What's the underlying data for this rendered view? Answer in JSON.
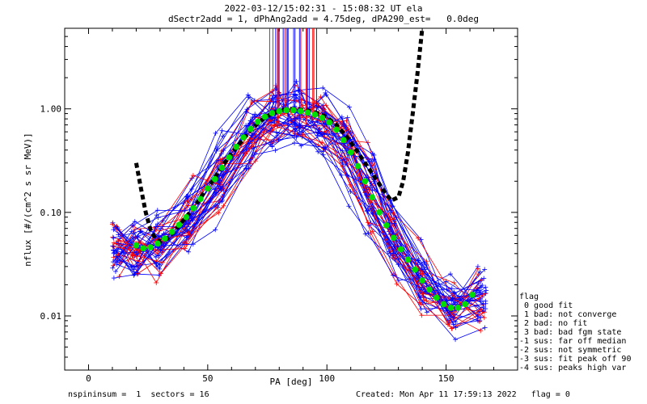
{
  "header": {
    "line1": "2022-03-12/15:02:31 - 15:08:32 UT ela",
    "line2": "dSectr2add = 1, dPhAng2add = 4.75deg, dPA290_est=   0.0deg"
  },
  "legend": {
    "title": "flag",
    "items": [
      " 0 good fit",
      " 1 bad: not converge",
      " 2 bad: no fit",
      " 3 bad: bad fgm state",
      "-1 sus: far off median",
      "-2 sus: not symmetric",
      "-3 sus: fit peak off 90",
      "-4 sus: peaks high var"
    ]
  },
  "footer": {
    "left": "nspininsum =  1  sectors = 16",
    "right": "Created: Mon Apr 11 17:59:13 2022   flag = 0"
  },
  "chart_data": {
    "type": "line",
    "xlabel": "PA [deg]",
    "ylabel": "nflux [#/(cm^2 s sr MeV)]",
    "xlim": [
      -10,
      180
    ],
    "ylim_log": [
      0.003,
      6.0
    ],
    "x_ticks": [
      0,
      50,
      100,
      150
    ],
    "x_tick_labels": [
      "0",
      "50",
      "100",
      "150"
    ],
    "y_ticks": [
      0.01,
      0.1,
      1.0
    ],
    "y_tick_labels": [
      "0.01",
      "0.10",
      "1.00"
    ],
    "colors": {
      "blue": "#0000ff",
      "red": "#ff0000",
      "green": "#00dd00",
      "black": "#000000"
    },
    "series": [
      {
        "color": "green",
        "style": "dots",
        "x": [
          20,
          23,
          26,
          29,
          32,
          35,
          38,
          41,
          44,
          47,
          50,
          53,
          56,
          59,
          62,
          65,
          68,
          71,
          74,
          77,
          80,
          83,
          86,
          89,
          92,
          95,
          98,
          101,
          104,
          107,
          110,
          113,
          116,
          119,
          122,
          125,
          128,
          131,
          134,
          137,
          140,
          143,
          146,
          149,
          152,
          155,
          158,
          161
        ],
        "y": [
          0.048,
          0.045,
          0.046,
          0.05,
          0.056,
          0.065,
          0.076,
          0.09,
          0.11,
          0.135,
          0.17,
          0.21,
          0.27,
          0.34,
          0.43,
          0.53,
          0.64,
          0.75,
          0.84,
          0.91,
          0.95,
          0.97,
          0.97,
          0.95,
          0.92,
          0.88,
          0.82,
          0.74,
          0.63,
          0.5,
          0.38,
          0.28,
          0.2,
          0.14,
          0.1,
          0.075,
          0.057,
          0.044,
          0.035,
          0.028,
          0.022,
          0.018,
          0.015,
          0.013,
          0.012,
          0.012,
          0.013,
          0.016
        ]
      },
      {
        "color": "black",
        "style": "dashed-thick",
        "x": [
          20,
          22,
          24,
          26,
          28,
          30,
          33,
          36,
          40,
          44,
          48,
          52,
          56,
          60,
          64,
          68,
          72,
          76,
          80,
          84,
          88,
          92,
          96,
          100,
          104,
          108,
          112,
          116,
          120,
          124,
          127,
          130,
          132,
          134,
          136,
          138,
          140
        ],
        "y": [
          0.3,
          0.17,
          0.1,
          0.068,
          0.056,
          0.052,
          0.056,
          0.066,
          0.085,
          0.11,
          0.15,
          0.2,
          0.28,
          0.37,
          0.48,
          0.62,
          0.76,
          0.88,
          0.96,
          1.0,
          0.99,
          0.96,
          0.91,
          0.83,
          0.7,
          0.55,
          0.41,
          0.3,
          0.22,
          0.16,
          0.13,
          0.14,
          0.2,
          0.38,
          0.9,
          2.2,
          6.0
        ]
      }
    ],
    "traces_note": "",
    "markers": "+"
  }
}
